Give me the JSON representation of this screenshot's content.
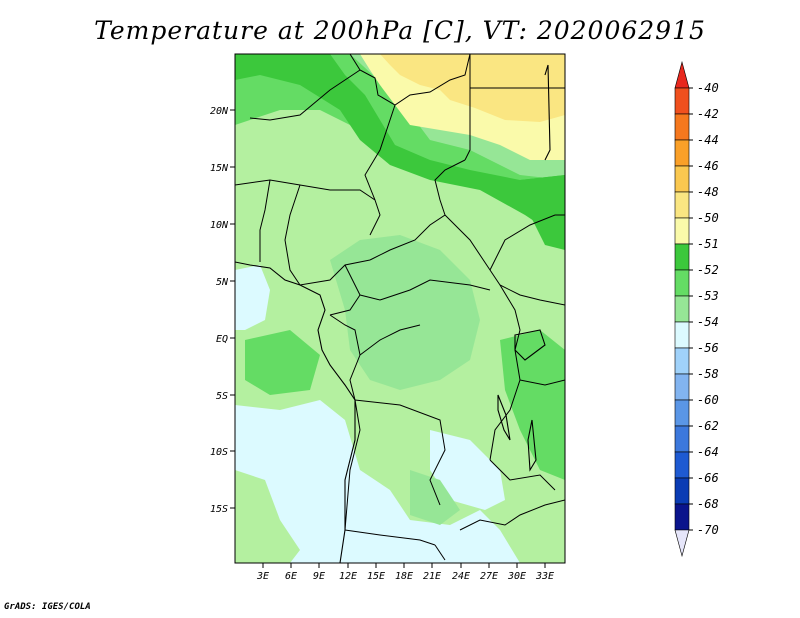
{
  "title": "Temperature at 200hPa [C], VT: 2020062915",
  "credit": "GrADS: IGES/COLA",
  "map": {
    "lat_labels": [
      "20N",
      "15N",
      "10N",
      "5N",
      "EQ",
      "5S",
      "10S",
      "15S"
    ],
    "lon_labels": [
      "3E",
      "6E",
      "9E",
      "12E",
      "15E",
      "18E",
      "21E",
      "24E",
      "27E",
      "30E",
      "33E"
    ]
  },
  "colorbar": {
    "labels": [
      "-40",
      "-42",
      "-44",
      "-46",
      "-48",
      "-50",
      "-51",
      "-52",
      "-53",
      "-54",
      "-56",
      "-58",
      "-60",
      "-62",
      "-64",
      "-66",
      "-68",
      "-70"
    ],
    "colors": [
      "#e8281e",
      "#f0501e",
      "#f5781e",
      "#faa028",
      "#fac850",
      "#fae682",
      "#fafaaa",
      "#3cc83c",
      "#64dc64",
      "#96e696",
      "#dcfaff",
      "#a0d2fa",
      "#82b4f0",
      "#5a96e6",
      "#3c78dc",
      "#1e5ad2",
      "#0a3cb4",
      "#0a148c",
      "#e6e6fa"
    ]
  },
  "colors": {
    "very_light_green": "#b4f0a0",
    "light_green": "#96e696",
    "mid_green": "#64dc64",
    "green": "#3cc83c",
    "pale_cyan": "#dcfaff",
    "yellow": "#fae682",
    "pale_yellow": "#fafaaa"
  }
}
